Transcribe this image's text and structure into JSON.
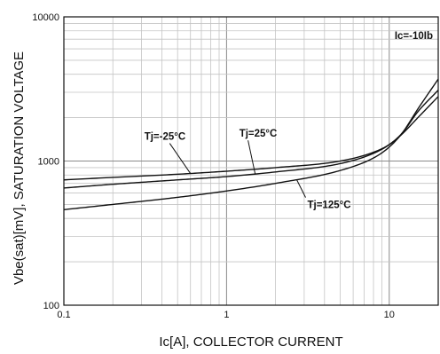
{
  "chart_data": {
    "type": "line",
    "title": "",
    "xlabel": "Ic[A], COLLECTOR CURRENT",
    "ylabel": "Vbe(sat)[mV], SATURATION VOLTAGE",
    "xscale": "log",
    "yscale": "log",
    "xlim": [
      0.1,
      20
    ],
    "ylim": [
      100,
      10000
    ],
    "x_ticks": [
      {
        "value": 0.1,
        "label": "0.1"
      },
      {
        "value": 1,
        "label": "1"
      },
      {
        "value": 10,
        "label": "10"
      }
    ],
    "y_ticks": [
      {
        "value": 100,
        "label": "100"
      },
      {
        "value": 1000,
        "label": "1000"
      },
      {
        "value": 10000,
        "label": "10000"
      }
    ],
    "grid": true,
    "condition_label": "Ic=-10Ib",
    "series": [
      {
        "name": "Tj=-25°C",
        "x": [
          0.1,
          0.2,
          0.5,
          1,
          2,
          5,
          8,
          10,
          12,
          15,
          20
        ],
        "y": [
          740,
          770,
          810,
          850,
          900,
          1000,
          1150,
          1300,
          1540,
          2000,
          2800
        ]
      },
      {
        "name": "Tj=25°C",
        "x": [
          0.1,
          0.2,
          0.5,
          1,
          2,
          5,
          8,
          10,
          12,
          15,
          20
        ],
        "y": [
          650,
          690,
          740,
          780,
          840,
          960,
          1130,
          1300,
          1560,
          2200,
          3100
        ]
      },
      {
        "name": "Tj=125°C",
        "x": [
          0.1,
          0.2,
          0.5,
          1,
          2,
          5,
          8,
          10,
          12,
          15,
          20
        ],
        "y": [
          460,
          500,
          560,
          620,
          700,
          860,
          1050,
          1250,
          1560,
          2300,
          3700
        ]
      }
    ],
    "annotations": [
      {
        "text": "Tj=-25°C",
        "series": 0,
        "at_x": 0.6
      },
      {
        "text": "Tj=25°C",
        "series": 1,
        "at_x": 1.5
      },
      {
        "text": "Tj=125°C",
        "series": 2,
        "at_x": 2.7
      }
    ]
  }
}
